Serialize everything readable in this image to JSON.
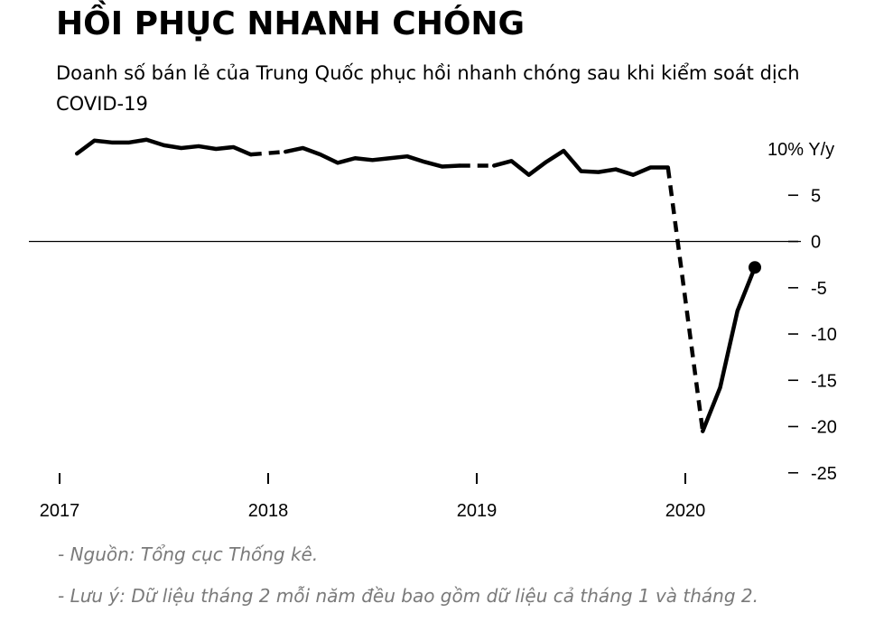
{
  "header": {
    "title": "HỒI PHỤC NHANH CHÓNG",
    "subtitle": "Doanh số bán lẻ của Trung Quốc phục hồi nhanh chóng sau khi kiểm soát dịch COVID-19"
  },
  "notes": {
    "source": "- Nguồn: Tổng cục Thống kê.",
    "remark": "- Lưu ý: Dữ liệu tháng 2 mỗi năm đều bao gồm dữ liệu cả tháng 1 và tháng 2."
  },
  "chart_data": {
    "type": "line",
    "title": "HỒI PHỤC NHANH CHÓNG",
    "subtitle": "Doanh số bán lẻ của Trung Quốc phục hồi nhanh chóng sau khi kiểm soát dịch COVID-19",
    "ylim": [
      -25,
      10
    ],
    "y_ticks": [
      10,
      5,
      0,
      -5,
      -10,
      -15,
      -20,
      -25
    ],
    "y_tick_labels": [
      "10% Y/y",
      "5",
      "0",
      "-5",
      "-10",
      "-15",
      "-20",
      "-25"
    ],
    "x_ticks": [
      "2017",
      "2018",
      "2019",
      "2020"
    ],
    "zero_line": true,
    "grid": false,
    "colors": {
      "line": "#000000",
      "axis": "#000000",
      "note": "#7a7a7a"
    },
    "series": [
      {
        "x": [
          "2017-02",
          "2017-03",
          "2017-04",
          "2017-05",
          "2017-06",
          "2017-07",
          "2017-08",
          "2017-09",
          "2017-10",
          "2017-11",
          "2017-12",
          "2018-02",
          "2018-03",
          "2018-04",
          "2018-05",
          "2018-06",
          "2018-07",
          "2018-08",
          "2018-09",
          "2018-10",
          "2018-11",
          "2018-12",
          "2019-02",
          "2019-03",
          "2019-04",
          "2019-05",
          "2019-06",
          "2019-07",
          "2019-08",
          "2019-09",
          "2019-10",
          "2019-11",
          "2019-12",
          "2020-02",
          "2020-03",
          "2020-04",
          "2020-05"
        ],
        "values": [
          9.5,
          10.9,
          10.7,
          10.7,
          11.0,
          10.4,
          10.1,
          10.3,
          10.0,
          10.2,
          9.4,
          9.7,
          10.1,
          9.4,
          8.5,
          9.0,
          8.8,
          9.0,
          9.2,
          8.6,
          8.1,
          8.2,
          8.2,
          8.7,
          7.2,
          8.6,
          9.8,
          7.6,
          7.5,
          7.8,
          7.2,
          8.0,
          8.0,
          -20.5,
          -15.8,
          -7.5,
          -2.8
        ]
      }
    ],
    "dashed_segments": [
      [
        "2017-12",
        "2018-02"
      ],
      [
        "2018-12",
        "2019-02"
      ],
      [
        "2019-12",
        "2020-02"
      ]
    ],
    "last_point_marker": "2020-05"
  }
}
